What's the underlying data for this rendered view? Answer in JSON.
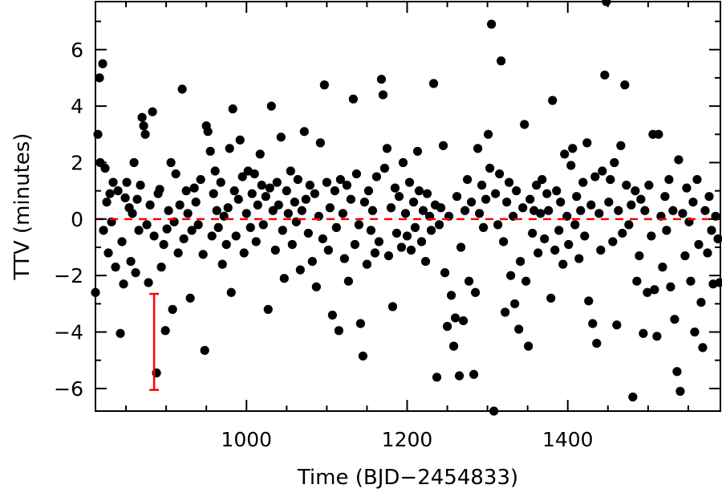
{
  "chart_data": {
    "type": "scatter",
    "title": "",
    "xlabel": "Time (BJD−2454833)",
    "ylabel": "TTV (minutes)",
    "xlim": [
      812,
      1590
    ],
    "ylim": [
      -6.8,
      7.7
    ],
    "xticks": [
      1000,
      1200,
      1400
    ],
    "xtick_labels": [
      "1000",
      "1200",
      "1400"
    ],
    "yticks": [
      -6,
      -4,
      -2,
      0,
      2,
      4,
      6
    ],
    "ytick_labels": [
      "−6",
      "−4",
      "−2",
      "0",
      "2",
      "4",
      "6"
    ],
    "grid": false,
    "legend": "none",
    "marker_color": "#000000",
    "reference_line": {
      "y": 0,
      "style": "dashed",
      "color": "#ff0000"
    },
    "error_bar_example": {
      "x": 885,
      "y_low": -6.05,
      "y_high": -2.65,
      "color": "#ff0000"
    },
    "points": [
      [
        812,
        -2.6
      ],
      [
        815,
        3.0
      ],
      [
        817,
        5.0
      ],
      [
        818,
        2.0
      ],
      [
        821,
        5.5
      ],
      [
        822,
        -0.4
      ],
      [
        824,
        1.8
      ],
      [
        826,
        0.6
      ],
      [
        828,
        -1.2
      ],
      [
        830,
        0.9
      ],
      [
        832,
        -0.1
      ],
      [
        834,
        1.3
      ],
      [
        837,
        -1.7
      ],
      [
        840,
        1.0
      ],
      [
        843,
        -4.05
      ],
      [
        845,
        -0.8
      ],
      [
        847,
        -2.3
      ],
      [
        849,
        0.75
      ],
      [
        851,
        1.3
      ],
      [
        854,
        0.4
      ],
      [
        856,
        -1.5
      ],
      [
        858,
        0.2
      ],
      [
        860,
        2.0
      ],
      [
        862,
        -1.9
      ],
      [
        864,
        0.7
      ],
      [
        866,
        -0.4
      ],
      [
        868,
        1.2
      ],
      [
        870,
        3.6
      ],
      [
        872,
        3.3
      ],
      [
        874,
        3.0
      ],
      [
        876,
        -0.2
      ],
      [
        878,
        -2.25
      ],
      [
        880,
        0.5
      ],
      [
        883,
        3.8
      ],
      [
        885,
        -0.6
      ],
      [
        888,
        -5.45
      ],
      [
        890,
        0.9
      ],
      [
        892,
        1.05
      ],
      [
        894,
        -1.7
      ],
      [
        897,
        -0.9
      ],
      [
        899,
        -3.95
      ],
      [
        901,
        -0.35
      ],
      [
        903,
        0.3
      ],
      [
        906,
        2.0
      ],
      [
        908,
        -3.2
      ],
      [
        910,
        -0.1
      ],
      [
        912,
        1.6
      ],
      [
        915,
        -1.2
      ],
      [
        917,
        0.5
      ],
      [
        920,
        4.6
      ],
      [
        922,
        -0.7
      ],
      [
        925,
        1.0
      ],
      [
        927,
        0.2
      ],
      [
        930,
        -2.8
      ],
      [
        932,
        -0.4
      ],
      [
        935,
        1.1
      ],
      [
        937,
        0.6
      ],
      [
        940,
        -0.2
      ],
      [
        943,
        1.4
      ],
      [
        946,
        -1.25
      ],
      [
        948,
        -4.65
      ],
      [
        950,
        3.3
      ],
      [
        952,
        3.1
      ],
      [
        955,
        2.4
      ],
      [
        957,
        -0.6
      ],
      [
        959,
        0.9
      ],
      [
        961,
        1.7
      ],
      [
        963,
        0.3
      ],
      [
        965,
        -0.3
      ],
      [
        968,
        1.3
      ],
      [
        970,
        -1.6
      ],
      [
        972,
        0.1
      ],
      [
        975,
        -0.9
      ],
      [
        977,
        0.4
      ],
      [
        979,
        2.5
      ],
      [
        981,
        -2.6
      ],
      [
        983,
        3.9
      ],
      [
        985,
        1.0
      ],
      [
        987,
        -0.6
      ],
      [
        990,
        0.7
      ],
      [
        992,
        2.8
      ],
      [
        995,
        1.5
      ],
      [
        997,
        -1.2
      ],
      [
        1000,
        0.2
      ],
      [
        1002,
        1.7
      ],
      [
        1005,
        -0.3
      ],
      [
        1007,
        0.9
      ],
      [
        1010,
        1.6
      ],
      [
        1012,
        -0.8
      ],
      [
        1014,
        0.5
      ],
      [
        1017,
        2.3
      ],
      [
        1019,
        1.2
      ],
      [
        1021,
        -0.2
      ],
      [
        1024,
        0.8
      ],
      [
        1027,
        -3.2
      ],
      [
        1029,
        1.1
      ],
      [
        1031,
        4.0
      ],
      [
        1033,
        0.3
      ],
      [
        1036,
        -1.1
      ],
      [
        1038,
        1.3
      ],
      [
        1040,
        0.5
      ],
      [
        1043,
        2.9
      ],
      [
        1045,
        -0.4
      ],
      [
        1047,
        -2.1
      ],
      [
        1050,
        1.0
      ],
      [
        1052,
        0.2
      ],
      [
        1055,
        1.7
      ],
      [
        1057,
        -0.9
      ],
      [
        1060,
        0.6
      ],
      [
        1062,
        -0.1
      ],
      [
        1064,
        1.4
      ],
      [
        1067,
        -1.8
      ],
      [
        1069,
        0.3
      ],
      [
        1072,
        3.1
      ],
      [
        1074,
        0.7
      ],
      [
        1077,
        -0.5
      ],
      [
        1079,
        1.2
      ],
      [
        1082,
        -1.5
      ],
      [
        1085,
        0.9
      ],
      [
        1087,
        -2.4
      ],
      [
        1090,
        0.1
      ],
      [
        1092,
        2.7
      ],
      [
        1095,
        -0.7
      ],
      [
        1097,
        4.75
      ],
      [
        1100,
        1.3
      ],
      [
        1102,
        -1.1
      ],
      [
        1104,
        0.4
      ],
      [
        1107,
        -3.4
      ],
      [
        1110,
        1.0
      ],
      [
        1112,
        -0.3
      ],
      [
        1115,
        -3.95
      ],
      [
        1117,
        1.4
      ],
      [
        1120,
        0.2
      ],
      [
        1122,
        -1.4
      ],
      [
        1125,
        1.2
      ],
      [
        1127,
        -2.2
      ],
      [
        1130,
        0.7
      ],
      [
        1133,
        4.25
      ],
      [
        1135,
        -0.9
      ],
      [
        1137,
        1.6
      ],
      [
        1140,
        -0.2
      ],
      [
        1142,
        -3.7
      ],
      [
        1145,
        -4.85
      ],
      [
        1147,
        0.6
      ],
      [
        1150,
        -1.6
      ],
      [
        1152,
        1.0
      ],
      [
        1155,
        -0.4
      ],
      [
        1157,
        0.3
      ],
      [
        1160,
        -1.2
      ],
      [
        1162,
        1.5
      ],
      [
        1165,
        -0.8
      ],
      [
        1168,
        4.95
      ],
      [
        1170,
        4.4
      ],
      [
        1172,
        1.8
      ],
      [
        1175,
        2.5
      ],
      [
        1177,
        -1.3
      ],
      [
        1180,
        0.4
      ],
      [
        1182,
        -3.1
      ],
      [
        1185,
        1.1
      ],
      [
        1187,
        -0.5
      ],
      [
        1190,
        0.8
      ],
      [
        1193,
        -1.0
      ],
      [
        1195,
        2.0
      ],
      [
        1198,
        0.2
      ],
      [
        1200,
        -0.6
      ],
      [
        1203,
        1.3
      ],
      [
        1205,
        -1.1
      ],
      [
        1208,
        0.6
      ],
      [
        1210,
        -0.3
      ],
      [
        1213,
        2.4
      ],
      [
        1215,
        1.0
      ],
      [
        1218,
        -0.8
      ],
      [
        1220,
        0.3
      ],
      [
        1223,
        -1.5
      ],
      [
        1225,
        0.9
      ],
      [
        1228,
        0.1
      ],
      [
        1230,
        -0.4
      ],
      [
        1233,
        4.8
      ],
      [
        1235,
        0.5
      ],
      [
        1237,
        -5.6
      ],
      [
        1240,
        -0.2
      ],
      [
        1242,
        0.4
      ],
      [
        1245,
        2.6
      ],
      [
        1247,
        -1.9
      ],
      [
        1250,
        -3.8
      ],
      [
        1252,
        0.1
      ],
      [
        1255,
        -2.7
      ],
      [
        1258,
        -4.5
      ],
      [
        1260,
        -3.5
      ],
      [
        1262,
        0.8
      ],
      [
        1265,
        -5.55
      ],
      [
        1267,
        -1.0
      ],
      [
        1270,
        -3.6
      ],
      [
        1272,
        0.3
      ],
      [
        1275,
        1.4
      ],
      [
        1277,
        -2.2
      ],
      [
        1280,
        0.6
      ],
      [
        1283,
        -5.5
      ],
      [
        1285,
        -2.6
      ],
      [
        1288,
        2.5
      ],
      [
        1290,
        0.2
      ],
      [
        1293,
        1.2
      ],
      [
        1295,
        -0.3
      ],
      [
        1298,
        0.7
      ],
      [
        1301,
        3.0
      ],
      [
        1303,
        1.8
      ],
      [
        1305,
        6.9
      ],
      [
        1308,
        -6.8
      ],
      [
        1310,
        0.9
      ],
      [
        1313,
        -0.2
      ],
      [
        1315,
        1.6
      ],
      [
        1317,
        5.6
      ],
      [
        1320,
        -0.8
      ],
      [
        1322,
        -3.3
      ],
      [
        1324,
        0.6
      ],
      [
        1327,
        1.3
      ],
      [
        1329,
        -2.0
      ],
      [
        1332,
        0.1
      ],
      [
        1334,
        -3.0
      ],
      [
        1336,
        1.0
      ],
      [
        1339,
        -3.9
      ],
      [
        1341,
        -1.5
      ],
      [
        1344,
        0.4
      ],
      [
        1346,
        3.35
      ],
      [
        1348,
        -2.2
      ],
      [
        1351,
        -4.5
      ],
      [
        1353,
        0.7
      ],
      [
        1356,
        -0.5
      ],
      [
        1358,
        0.3
      ],
      [
        1361,
        1.2
      ],
      [
        1363,
        -1.2
      ],
      [
        1366,
        0.2
      ],
      [
        1368,
        1.4
      ],
      [
        1371,
        -0.7
      ],
      [
        1374,
        0.9
      ],
      [
        1376,
        0.3
      ],
      [
        1379,
        -2.8
      ],
      [
        1381,
        4.2
      ],
      [
        1384,
        -1.1
      ],
      [
        1386,
        1.0
      ],
      [
        1389,
        -0.4
      ],
      [
        1391,
        0.6
      ],
      [
        1394,
        -1.6
      ],
      [
        1396,
        2.3
      ],
      [
        1399,
        0.1
      ],
      [
        1401,
        -0.9
      ],
      [
        1404,
        1.9
      ],
      [
        1406,
        2.5
      ],
      [
        1409,
        -0.2
      ],
      [
        1411,
        0.8
      ],
      [
        1414,
        -1.4
      ],
      [
        1416,
        0.3
      ],
      [
        1419,
        1.3
      ],
      [
        1421,
        -0.6
      ],
      [
        1424,
        2.7
      ],
      [
        1426,
        -2.9
      ],
      [
        1429,
        0.5
      ],
      [
        1431,
        -3.7
      ],
      [
        1434,
        1.5
      ],
      [
        1436,
        -4.4
      ],
      [
        1439,
        0.2
      ],
      [
        1441,
        -1.1
      ],
      [
        1443,
        1.7
      ],
      [
        1446,
        5.1
      ],
      [
        1448,
        7.7
      ],
      [
        1451,
        0.6
      ],
      [
        1453,
        1.4
      ],
      [
        1456,
        -0.8
      ],
      [
        1458,
        2.0
      ],
      [
        1461,
        -3.75
      ],
      [
        1463,
        0.3
      ],
      [
        1466,
        2.6
      ],
      [
        1468,
        -0.5
      ],
      [
        1471,
        4.75
      ],
      [
        1473,
        1.2
      ],
      [
        1476,
        -0.2
      ],
      [
        1479,
        0.5
      ],
      [
        1481,
        -6.3
      ],
      [
        1484,
        1.0
      ],
      [
        1486,
        -2.2
      ],
      [
        1489,
        -1.3
      ],
      [
        1491,
        0.7
      ],
      [
        1494,
        -4.05
      ],
      [
        1496,
        0.3
      ],
      [
        1499,
        -2.6
      ],
      [
        1501,
        1.2
      ],
      [
        1504,
        -0.6
      ],
      [
        1506,
        3.0
      ],
      [
        1508,
        -2.5
      ],
      [
        1511,
        -4.15
      ],
      [
        1513,
        3.0
      ],
      [
        1516,
        0.1
      ],
      [
        1518,
        -1.7
      ],
      [
        1521,
        0.8
      ],
      [
        1523,
        -0.4
      ],
      [
        1526,
        1.4
      ],
      [
        1528,
        -2.4
      ],
      [
        1531,
        0.3
      ],
      [
        1533,
        -3.55
      ],
      [
        1536,
        -5.4
      ],
      [
        1538,
        2.1
      ],
      [
        1540,
        -6.1
      ],
      [
        1543,
        0.2
      ],
      [
        1546,
        -1.3
      ],
      [
        1548,
        1.1
      ],
      [
        1551,
        -0.1
      ],
      [
        1553,
        -2.2
      ],
      [
        1556,
        0.6
      ],
      [
        1558,
        -4.0
      ],
      [
        1561,
        1.4
      ],
      [
        1563,
        -0.9
      ],
      [
        1566,
        -2.95
      ],
      [
        1568,
        -4.55
      ],
      [
        1571,
        0.3
      ],
      [
        1574,
        -1.2
      ],
      [
        1576,
        0.8
      ],
      [
        1579,
        -0.4
      ],
      [
        1581,
        -2.3
      ],
      [
        1584,
        0.1
      ],
      [
        1587,
        -0.7
      ],
      [
        1589,
        -2.25
      ]
    ]
  }
}
